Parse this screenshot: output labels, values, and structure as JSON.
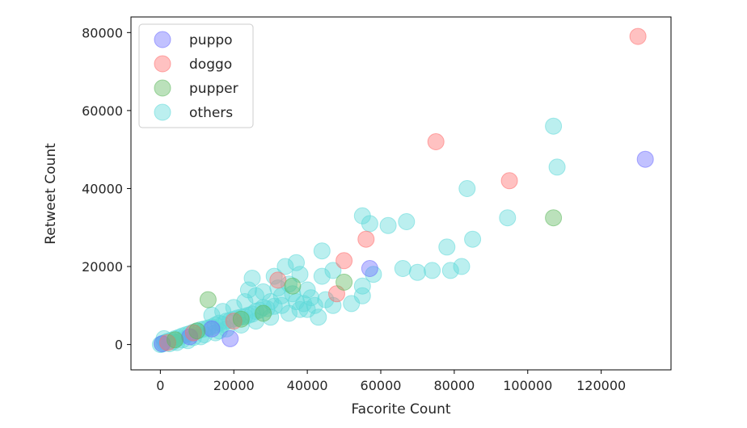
{
  "chart_data": {
    "type": "scatter",
    "xlabel": "Facorite Count",
    "ylabel": "Retweet Count",
    "xlim": [
      -8000,
      139000
    ],
    "ylim": [
      -6500,
      84000
    ],
    "xticks": [
      0,
      20000,
      40000,
      60000,
      80000,
      100000,
      120000
    ],
    "yticks": [
      0,
      20000,
      40000,
      60000,
      80000
    ],
    "grid": false,
    "legend": "top-left",
    "colors": {
      "puppo": "#6b6bff",
      "doggo": "#ff6b6b",
      "pupper": "#5cb85c",
      "others": "#5ed9d9"
    },
    "series": [
      {
        "name": "puppo",
        "points": [
          [
            132000,
            47500
          ],
          [
            57000,
            19500
          ],
          [
            19000,
            1500
          ],
          [
            500,
            200
          ],
          [
            8000,
            2000
          ],
          [
            14000,
            4000
          ]
        ]
      },
      {
        "name": "doggo",
        "points": [
          [
            130000,
            79000
          ],
          [
            75000,
            52000
          ],
          [
            95000,
            42000
          ],
          [
            56000,
            27000
          ],
          [
            50000,
            21500
          ],
          [
            48000,
            13000
          ],
          [
            32000,
            16500
          ],
          [
            2000,
            500
          ],
          [
            9000,
            3000
          ],
          [
            20000,
            6000
          ]
        ]
      },
      {
        "name": "pupper",
        "points": [
          [
            107000,
            32500
          ],
          [
            50000,
            16000
          ],
          [
            13000,
            11500
          ],
          [
            36000,
            15000
          ],
          [
            4000,
            1200
          ],
          [
            10000,
            3500
          ],
          [
            22000,
            6500
          ],
          [
            28000,
            8000
          ]
        ]
      },
      {
        "name": "others",
        "points": [
          [
            107000,
            56000
          ],
          [
            108000,
            45500
          ],
          [
            83500,
            40000
          ],
          [
            94500,
            32500
          ],
          [
            85000,
            27000
          ],
          [
            78000,
            25000
          ],
          [
            55000,
            33000
          ],
          [
            57000,
            31000
          ],
          [
            62000,
            30500
          ],
          [
            67000,
            31500
          ],
          [
            44000,
            24000
          ],
          [
            66000,
            19500
          ],
          [
            70000,
            18500
          ],
          [
            74000,
            19000
          ],
          [
            79000,
            19000
          ],
          [
            82000,
            20000
          ],
          [
            58000,
            18000
          ],
          [
            55000,
            15000
          ],
          [
            52000,
            10500
          ],
          [
            55000,
            12500
          ],
          [
            47000,
            19000
          ],
          [
            44000,
            17500
          ],
          [
            38000,
            18000
          ],
          [
            37000,
            21000
          ],
          [
            34000,
            20000
          ],
          [
            31000,
            17500
          ],
          [
            25000,
            17000
          ],
          [
            47000,
            10000
          ],
          [
            45000,
            11500
          ],
          [
            43000,
            7000
          ],
          [
            41000,
            12000
          ],
          [
            40000,
            14000
          ],
          [
            38000,
            9000
          ],
          [
            36000,
            13000
          ],
          [
            33000,
            10000
          ],
          [
            30000,
            11000
          ],
          [
            28000,
            9500
          ],
          [
            26000,
            8500
          ],
          [
            24000,
            7500
          ],
          [
            22000,
            7000
          ],
          [
            20000,
            6500
          ],
          [
            18000,
            6000
          ],
          [
            16000,
            5500
          ],
          [
            14000,
            4500
          ],
          [
            12000,
            4000
          ],
          [
            10000,
            3500
          ],
          [
            8000,
            2800
          ],
          [
            6000,
            2200
          ],
          [
            4000,
            1500
          ],
          [
            2000,
            800
          ],
          [
            1000,
            400
          ],
          [
            0,
            0
          ],
          [
            500,
            100
          ],
          [
            1500,
            600
          ],
          [
            3000,
            1100
          ],
          [
            5000,
            1800
          ],
          [
            7000,
            2500
          ],
          [
            9000,
            3200
          ],
          [
            11000,
            3800
          ],
          [
            13000,
            4200
          ],
          [
            15000,
            5000
          ],
          [
            17000,
            5200
          ],
          [
            19000,
            6200
          ],
          [
            21000,
            6800
          ],
          [
            23000,
            7200
          ],
          [
            25000,
            7800
          ],
          [
            27000,
            8800
          ],
          [
            29000,
            9200
          ],
          [
            31000,
            9800
          ],
          [
            33000,
            12500
          ],
          [
            35000,
            15500
          ],
          [
            37000,
            11000
          ],
          [
            39000,
            10500
          ],
          [
            15000,
            3000
          ],
          [
            18000,
            4000
          ],
          [
            22000,
            5000
          ],
          [
            26000,
            6000
          ],
          [
            30000,
            7000
          ],
          [
            12000,
            2500
          ],
          [
            9000,
            1800
          ],
          [
            6000,
            1200
          ],
          [
            3500,
            700
          ],
          [
            14000,
            7500
          ],
          [
            17000,
            8500
          ],
          [
            20000,
            9500
          ],
          [
            23000,
            11000
          ],
          [
            26000,
            12500
          ],
          [
            24000,
            14000
          ],
          [
            28000,
            13500
          ],
          [
            32000,
            14500
          ],
          [
            35000,
            8000
          ],
          [
            40000,
            9000
          ],
          [
            42000,
            10000
          ],
          [
            1000,
            1500
          ],
          [
            2500,
            200
          ],
          [
            4500,
            500
          ],
          [
            7500,
            1000
          ],
          [
            11000,
            2000
          ],
          [
            16000,
            3500
          ]
        ]
      }
    ]
  }
}
